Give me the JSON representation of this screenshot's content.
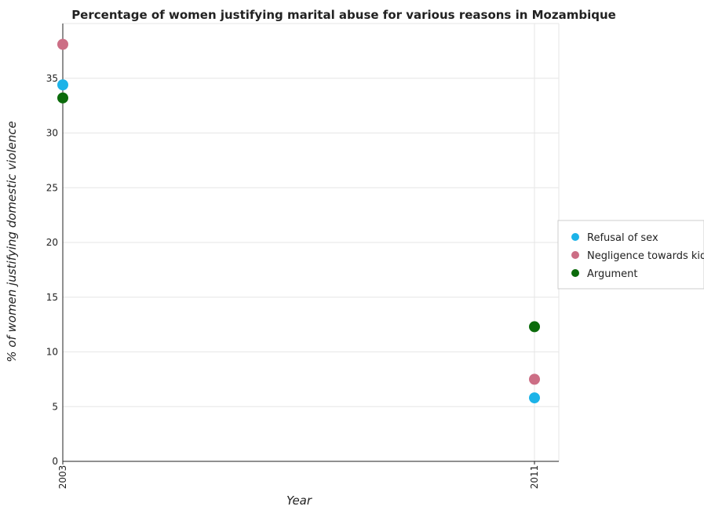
{
  "chart_data": {
    "type": "scatter",
    "title": "Percentage of women justifying marital abuse for various reasons in Mozambique",
    "xlabel": "Year",
    "ylabel": "% of women justifying domestic violence",
    "categories": [
      "2003",
      "2011"
    ],
    "ylim": [
      0,
      40
    ],
    "yticks": [
      "0",
      "5",
      "10",
      "15",
      "20",
      "25",
      "30",
      "35"
    ],
    "grid": true,
    "legend_position": "right",
    "series": [
      {
        "name": "Refusal of sex",
        "color": "#1cb3e8",
        "values": [
          34.4,
          5.8
        ]
      },
      {
        "name": "Negligence towards kids",
        "color": "#cc6e85",
        "values": [
          38.1,
          7.5
        ]
      },
      {
        "name": "Argument",
        "color": "#0b6b0b",
        "values": [
          33.2,
          12.3
        ]
      }
    ]
  }
}
